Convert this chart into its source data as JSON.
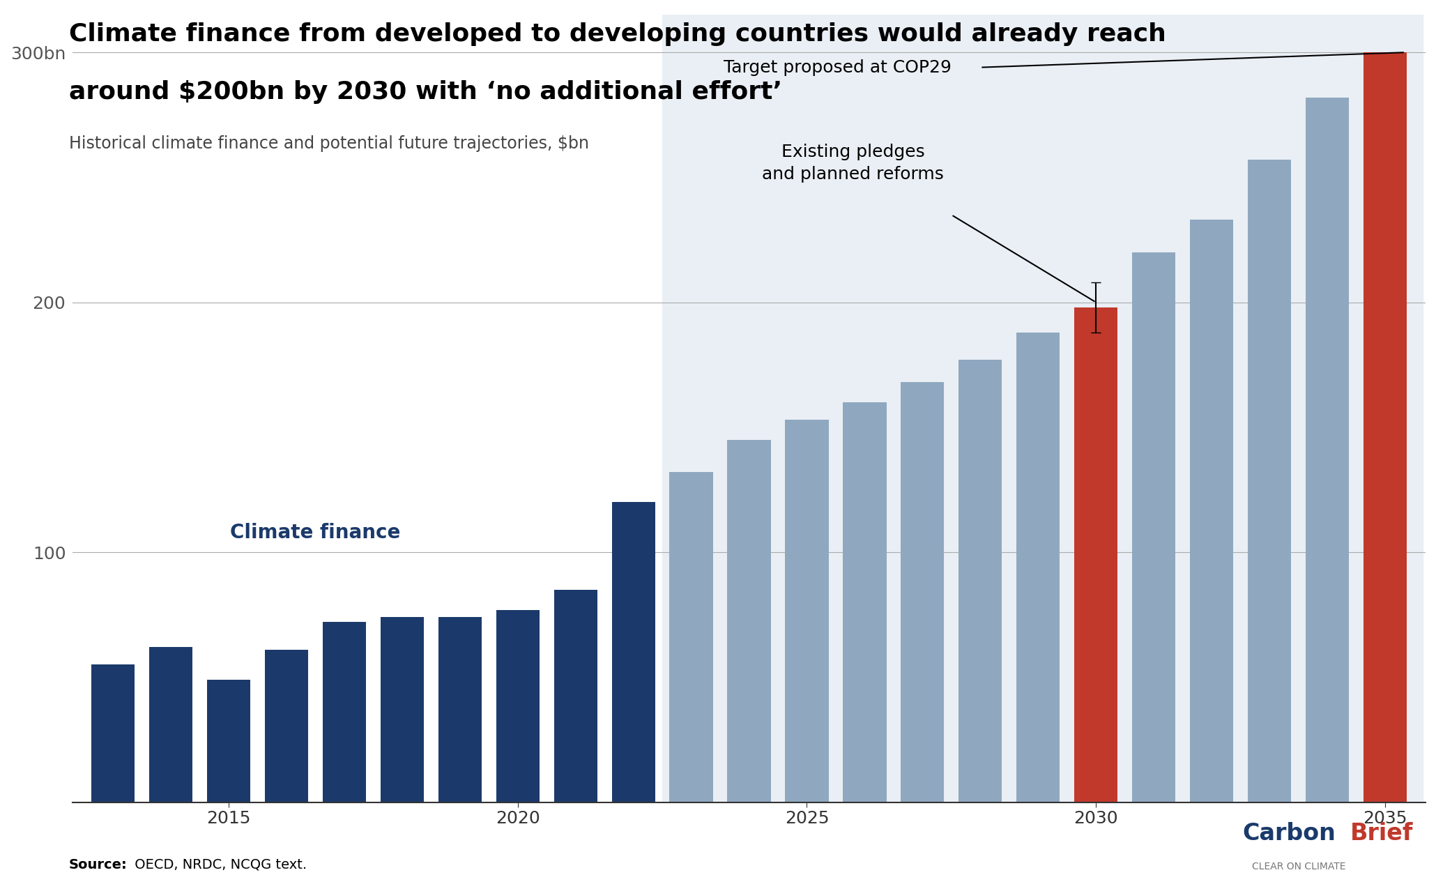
{
  "title_line1": "Climate finance from developed to developing countries would already reach",
  "title_line2": "around $200bn by 2030 with ‘no additional effort’",
  "subtitle": "Historical climate finance and potential future trajectories, $bn",
  "source_bold": "Source:",
  "source_rest": " OECD, NRDC, NCQG text.",
  "years_historical": [
    2013,
    2014,
    2015,
    2016,
    2017,
    2018,
    2019,
    2020,
    2021,
    2022
  ],
  "values_historical": [
    55,
    62,
    49,
    61,
    72,
    74,
    74,
    77,
    85,
    120
  ],
  "years_projected": [
    2023,
    2024,
    2025,
    2026,
    2027,
    2028,
    2029,
    2030,
    2031,
    2032,
    2033,
    2034,
    2035
  ],
  "values_projected": [
    132,
    145,
    153,
    160,
    168,
    177,
    188,
    198,
    220,
    233,
    257,
    282,
    300
  ],
  "red_years": [
    2030,
    2035
  ],
  "color_historical": "#1b3a6b",
  "color_projected": "#8fa8c0",
  "color_red": "#c0392b",
  "color_background_projected": "#eaeff5",
  "ylim": [
    0,
    315
  ],
  "yticks": [
    100,
    200,
    300
  ],
  "ytick_labels": [
    "100",
    "200",
    "300bn"
  ],
  "xticks": [
    2015,
    2020,
    2025,
    2030,
    2035
  ],
  "annotation_climate_finance": "Climate finance",
  "annotation_existing_pledges": "Existing pledges\nand planned reforms",
  "annotation_cop29": "Target proposed at COP29",
  "background_color": "#ffffff",
  "carbonbrief_color": "#1a3a6b",
  "carbonbrief_brief_color": "#c0392b"
}
